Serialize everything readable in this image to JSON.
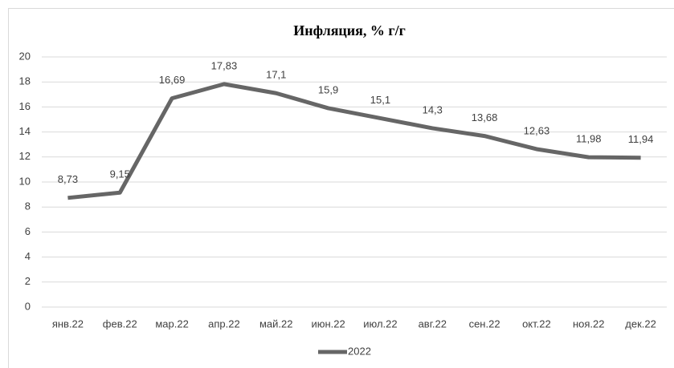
{
  "chart_data": {
    "type": "line",
    "title": "Инфляция, % г/г",
    "categories": [
      "янв.22",
      "фев.22",
      "мар.22",
      "апр.22",
      "май.22",
      "июн.22",
      "июл.22",
      "авг.22",
      "сен.22",
      "окт.22",
      "ноя.22",
      "дек.22"
    ],
    "series": [
      {
        "name": "2022",
        "color": "#666666",
        "values": [
          8.73,
          9.15,
          16.69,
          17.83,
          17.1,
          15.9,
          15.1,
          14.3,
          13.68,
          12.63,
          11.98,
          11.94
        ],
        "value_labels": [
          "8,73",
          "9,15",
          "16,69",
          "17,83",
          "17,1",
          "15,9",
          "15,1",
          "14,3",
          "13,68",
          "12,63",
          "11,98",
          "11,94"
        ]
      }
    ],
    "ylim": [
      0,
      20
    ],
    "yticks": [
      0,
      2,
      4,
      6,
      8,
      10,
      12,
      14,
      16,
      18,
      20
    ],
    "grid": true,
    "legend": "bottom"
  }
}
